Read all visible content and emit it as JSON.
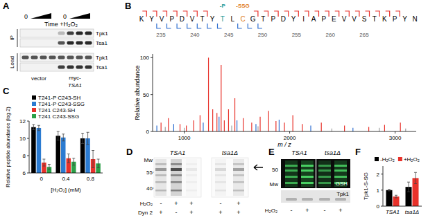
{
  "panel_labels": [
    "A",
    "B",
    "C",
    "D",
    "E",
    "F"
  ],
  "panel_a": {
    "time_label": "Time +H₂O₂",
    "start_labels": [
      "0",
      "0"
    ],
    "section_labels": [
      "IP",
      "Load"
    ],
    "row_labels": [
      "Tpk1",
      "Tsa1",
      "Tpk1",
      "Tsa1"
    ],
    "vector_label": "vector",
    "construct_prefix": "myc-",
    "construct_gene": "TSA1"
  },
  "panel_b": {
    "sequence": [
      "K",
      "Y",
      "V",
      "P",
      "D",
      "V",
      "T",
      "Y",
      "T",
      "L",
      "C",
      "G",
      "T",
      "P",
      "D",
      "Y",
      "I",
      "A",
      "P",
      "E",
      "V",
      "V",
      "S",
      "T",
      "K",
      "P",
      "Y",
      "N"
    ],
    "modifications": [
      {
        "label": "-P",
        "index": 8,
        "color": "#1a9a9a"
      },
      {
        "label": "-SSG",
        "index": 10,
        "color": "#e07b1a"
      }
    ],
    "position_labels": [
      235,
      240,
      245,
      250,
      255,
      260,
      265
    ],
    "fragment_breaks": {
      "upper": [
        0,
        1,
        2,
        3,
        4,
        5,
        6,
        11,
        12,
        13,
        14,
        15,
        16,
        17,
        18,
        19,
        20,
        21,
        22,
        23,
        24,
        25
      ],
      "lower": [
        1,
        2,
        3,
        4,
        5,
        6,
        7,
        9,
        10,
        11
      ]
    }
  },
  "panel_d": {
    "mw_title": "Mw",
    "mw_labels": [
      "55",
      "40"
    ],
    "row_labels": [
      "H₂O₂",
      "Dyn 2"
    ],
    "groups": [
      {
        "strain": "TSA1",
        "h2o2": [
          "-",
          "+",
          "+"
        ],
        "dyn2": [
          "+",
          "-",
          "+"
        ]
      },
      {
        "strain": "tsa1Δ",
        "h2o2": [
          "-",
          "+"
        ],
        "dyn2": [
          "+",
          "+"
        ]
      }
    ]
  },
  "panel_e": {
    "mw_title": "Mw",
    "mw_labels": [
      "50"
    ],
    "stain_label": "GSH",
    "blot_label": "Tpk1",
    "row_label": "H₂O₂",
    "groups": [
      {
        "strain": "TSA1",
        "h2o2": [
          "-",
          "+"
        ]
      },
      {
        "strain": "tsa1Δ",
        "h2o2": [
          "-",
          "+"
        ]
      }
    ]
  },
  "chart_data": [
    {
      "type": "stem",
      "x_label": "m / z",
      "y_label": "Relative abundance",
      "x": [
        740,
        780,
        820,
        850,
        900,
        960,
        1000,
        1020,
        1090,
        1150,
        1180,
        1230,
        1270,
        1310,
        1330,
        1350,
        1380,
        1420,
        1450,
        1480,
        1500,
        1560,
        1640,
        1680,
        1700,
        1720,
        1800,
        1870,
        1900,
        1950,
        2030,
        2120,
        2200,
        2300,
        2400,
        2520,
        2600,
        2750,
        2850,
        2900,
        3050,
        3100
      ],
      "values": [
        8,
        12,
        6,
        18,
        10,
        10,
        5,
        8,
        15,
        22,
        12,
        100,
        30,
        25,
        20,
        90,
        15,
        30,
        8,
        45,
        15,
        18,
        12,
        10,
        7,
        20,
        28,
        14,
        16,
        12,
        22,
        10,
        8,
        12,
        4,
        8,
        5,
        6,
        5,
        9,
        12,
        4
      ],
      "colors": [
        "#2f6fd0",
        "#e8312a",
        "#a0a0a0",
        "#e8312a",
        "#2f6fd0",
        "#e8312a",
        "#a0a0a0",
        "#e8312a",
        "#e8312a",
        "#e8312a",
        "#2f6fd0",
        "#e8312a",
        "#e8312a",
        "#e8312a",
        "#2f6fd0",
        "#e8312a",
        "#e8312a",
        "#e8312a",
        "#a0a0a0",
        "#e8312a",
        "#2f6fd0",
        "#e8312a",
        "#e8312a",
        "#2f6fd0",
        "#a0a0a0",
        "#e8312a",
        "#e8312a",
        "#e8312a",
        "#2f6fd0",
        "#e8312a",
        "#e8312a",
        "#e8312a",
        "#2f6fd0",
        "#e8312a",
        "#a0a0a0",
        "#e8312a",
        "#2f6fd0",
        "#e8312a",
        "#a0a0a0",
        "#e8312a",
        "#e8312a",
        "#a0a0a0"
      ],
      "xlim": [
        700,
        3200
      ],
      "xticks": [
        1000,
        2000,
        3000
      ],
      "ylim": [
        0,
        105
      ],
      "yticks": [
        0,
        50,
        100
      ]
    },
    {
      "type": "bar",
      "x_label": "[H₂O₂] (mM)",
      "y_label": "Relative peptide abundance (log 2)",
      "categories": [
        "0",
        "0.4",
        "0.8"
      ],
      "series": [
        {
          "name": "T241-P C243-SH",
          "color": "#000000",
          "values": [
            11.3,
            10.3,
            10.0
          ],
          "errors": [
            0.3,
            0.5,
            0.6
          ]
        },
        {
          "name": "T241-P C243-SSG",
          "color": "#2b7bd1",
          "values": [
            11.2,
            10.1,
            10.0
          ],
          "errors": [
            0.3,
            0.4,
            0.7
          ]
        },
        {
          "name": "T241 C243-SH",
          "color": "#e8312a",
          "values": [
            7.2,
            7.7,
            7.6
          ],
          "errors": [
            0.4,
            0.5,
            1.0
          ]
        },
        {
          "name": "T241 C243-SSG",
          "color": "#2ca048",
          "values": [
            6.7,
            7.3,
            7.1
          ],
          "errors": [
            0.3,
            0.4,
            0.5
          ]
        }
      ],
      "ylim": [
        6,
        12
      ],
      "yticks": [
        6,
        8,
        10,
        12
      ],
      "legend": "top-left"
    },
    {
      "type": "bar",
      "y_label": "Tpk1-S-SG",
      "categories": [
        "TSA1",
        "tsa1Δ"
      ],
      "series": [
        {
          "name": "-H₂O₂",
          "color": "#000000",
          "values": [
            1.0,
            1.2
          ],
          "errors": [
            0.05,
            0.3
          ]
        },
        {
          "name": "+H₂O₂",
          "color": "#e8312a",
          "values": [
            0.6,
            1.75
          ],
          "errors": [
            0.08,
            0.35
          ]
        }
      ],
      "ylim": [
        0,
        2.5
      ],
      "yticks": [
        0,
        1,
        2
      ],
      "legend": "top"
    }
  ]
}
